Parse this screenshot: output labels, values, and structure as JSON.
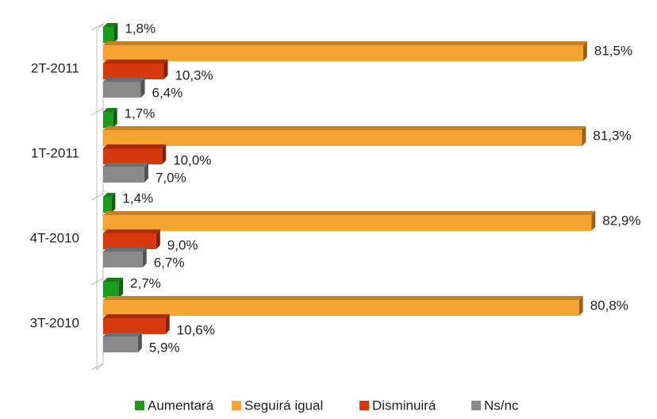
{
  "chart_data": {
    "type": "bar",
    "orientation": "horizontal",
    "categories": [
      "2T-2011",
      "1T-2011",
      "4T-2010",
      "3T-2010"
    ],
    "xlim": [
      0,
      90
    ],
    "series": [
      {
        "name": "Aumentará",
        "color": "#1e9b1e",
        "values": [
          1.8,
          1.7,
          1.4,
          2.7
        ],
        "value_labels": [
          "1,8%",
          "1,7%",
          "1,4%",
          "2,7%"
        ]
      },
      {
        "name": "Seguirá igual",
        "color": "#f6a431",
        "values": [
          81.5,
          81.3,
          82.9,
          80.8
        ],
        "value_labels": [
          "81,5%",
          "81,3%",
          "82,9%",
          "80,8%"
        ]
      },
      {
        "name": "Disminuirá",
        "color": "#d6390e",
        "values": [
          10.3,
          10.0,
          9.0,
          10.6
        ],
        "value_labels": [
          "10,3%",
          "10,0%",
          "9,0%",
          "10,6%"
        ]
      },
      {
        "name": "Ns/nc",
        "color": "#8a8a8a",
        "values": [
          6.4,
          7.0,
          6.7,
          5.9
        ],
        "value_labels": [
          "6,4%",
          "7,0%",
          "6,7%",
          "5,9%"
        ]
      }
    ],
    "legend": "bottom"
  }
}
